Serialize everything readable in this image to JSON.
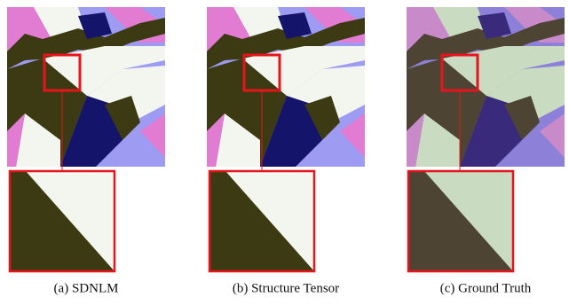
{
  "panels": [
    {
      "caption": "(a) SDNLM"
    },
    {
      "caption": "(b) Structure Tensor"
    },
    {
      "caption": "(c) Ground Truth"
    }
  ]
}
